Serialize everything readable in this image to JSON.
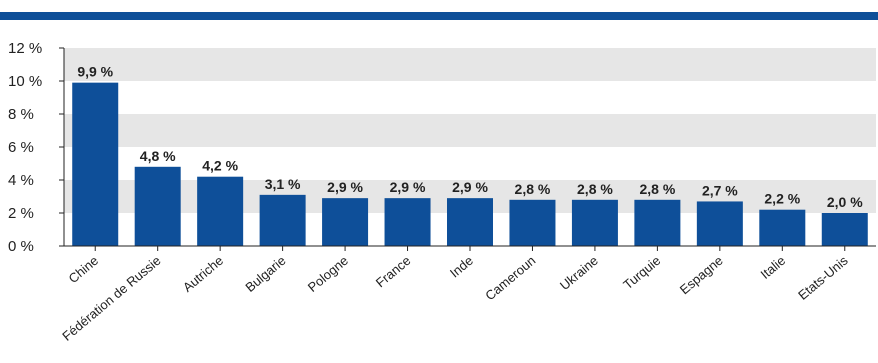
{
  "chart_data": {
    "type": "bar",
    "categories": [
      "Chine",
      "Fédération de Russie",
      "Autriche",
      "Bulgarie",
      "Pologne",
      "France",
      "Inde",
      "Cameroun",
      "Ukraine",
      "Turquie",
      "Espagne",
      "Italie",
      "Etats-Unis"
    ],
    "values": [
      9.9,
      4.8,
      4.2,
      3.1,
      2.9,
      2.9,
      2.9,
      2.8,
      2.8,
      2.8,
      2.7,
      2.2,
      2.0
    ],
    "data_labels": [
      "9,9 %",
      "4,8 %",
      "4,2 %",
      "3,1 %",
      "2,9 %",
      "2,9 %",
      "2,9 %",
      "2,8 %",
      "2,8 %",
      "2,8 %",
      "2,7 %",
      "2,2 %",
      "2,0 %"
    ],
    "y_ticks": [
      0,
      2,
      4,
      6,
      8,
      10,
      12
    ],
    "y_tick_labels": [
      "0 %",
      "2 %",
      "4 %",
      "6 %",
      "8 %",
      "10 %",
      "12 %"
    ],
    "ylim": [
      0,
      12
    ],
    "grid": "alternating horizontal bands",
    "colors": {
      "bar": "#0e4f99",
      "band": "#e6e6e6",
      "header": "#0e4f99"
    }
  }
}
